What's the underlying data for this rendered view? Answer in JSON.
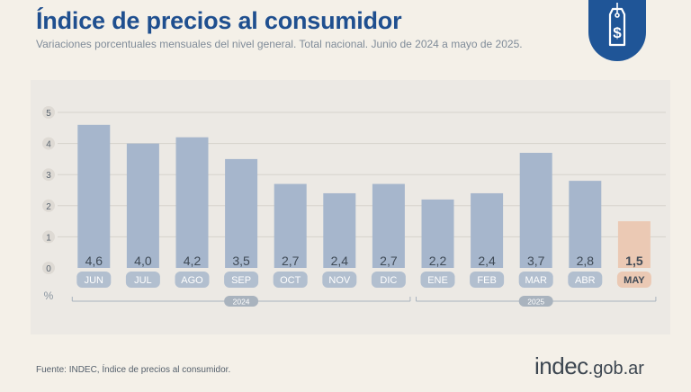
{
  "header": {
    "title": "Índice de precios al consumidor",
    "subtitle": "Variaciones porcentuales mensuales del nivel general. Total nacional. Junio de 2024 a mayo de 2025."
  },
  "badge": {
    "icon": "price-tag-dollar-icon",
    "color": "#1f5597"
  },
  "footer": {
    "source": "Fuente: INDEC, Índice de precios al consumidor.",
    "logo_name": "indec",
    "logo_domain": ".gob.ar"
  },
  "colors": {
    "bar": "#a6b6cc",
    "bar_highlight": "#ebc9b4",
    "label_pill": "#b2bfcf",
    "label_pill_highlight": "#ebc9b4",
    "value_text": "#3f4a56",
    "value_text_highlight": "#3f4a56",
    "title": "#1f4f8f"
  },
  "chart_data": {
    "type": "bar",
    "categories": [
      "JUN",
      "JUL",
      "AGO",
      "SEP",
      "OCT",
      "NOV",
      "DIC",
      "ENE",
      "FEB",
      "MAR",
      "ABR",
      "MAY"
    ],
    "values": [
      4.6,
      4.0,
      4.2,
      3.5,
      2.7,
      2.4,
      2.7,
      2.2,
      2.4,
      3.7,
      2.8,
      1.5
    ],
    "value_labels": [
      "4,6",
      "4,0",
      "4,2",
      "3,5",
      "2,7",
      "2,4",
      "2,7",
      "2,2",
      "2,4",
      "3,7",
      "2,8",
      "1,5"
    ],
    "highlight_index": 11,
    "y_ticks": [
      "0",
      "1",
      "2",
      "3",
      "4",
      "5"
    ],
    "ylim": [
      0,
      5
    ],
    "ylabel": "%",
    "grid": true,
    "year_groups": [
      {
        "label": "2024",
        "start": 0,
        "end": 6
      },
      {
        "label": "2025",
        "start": 7,
        "end": 11
      }
    ]
  }
}
